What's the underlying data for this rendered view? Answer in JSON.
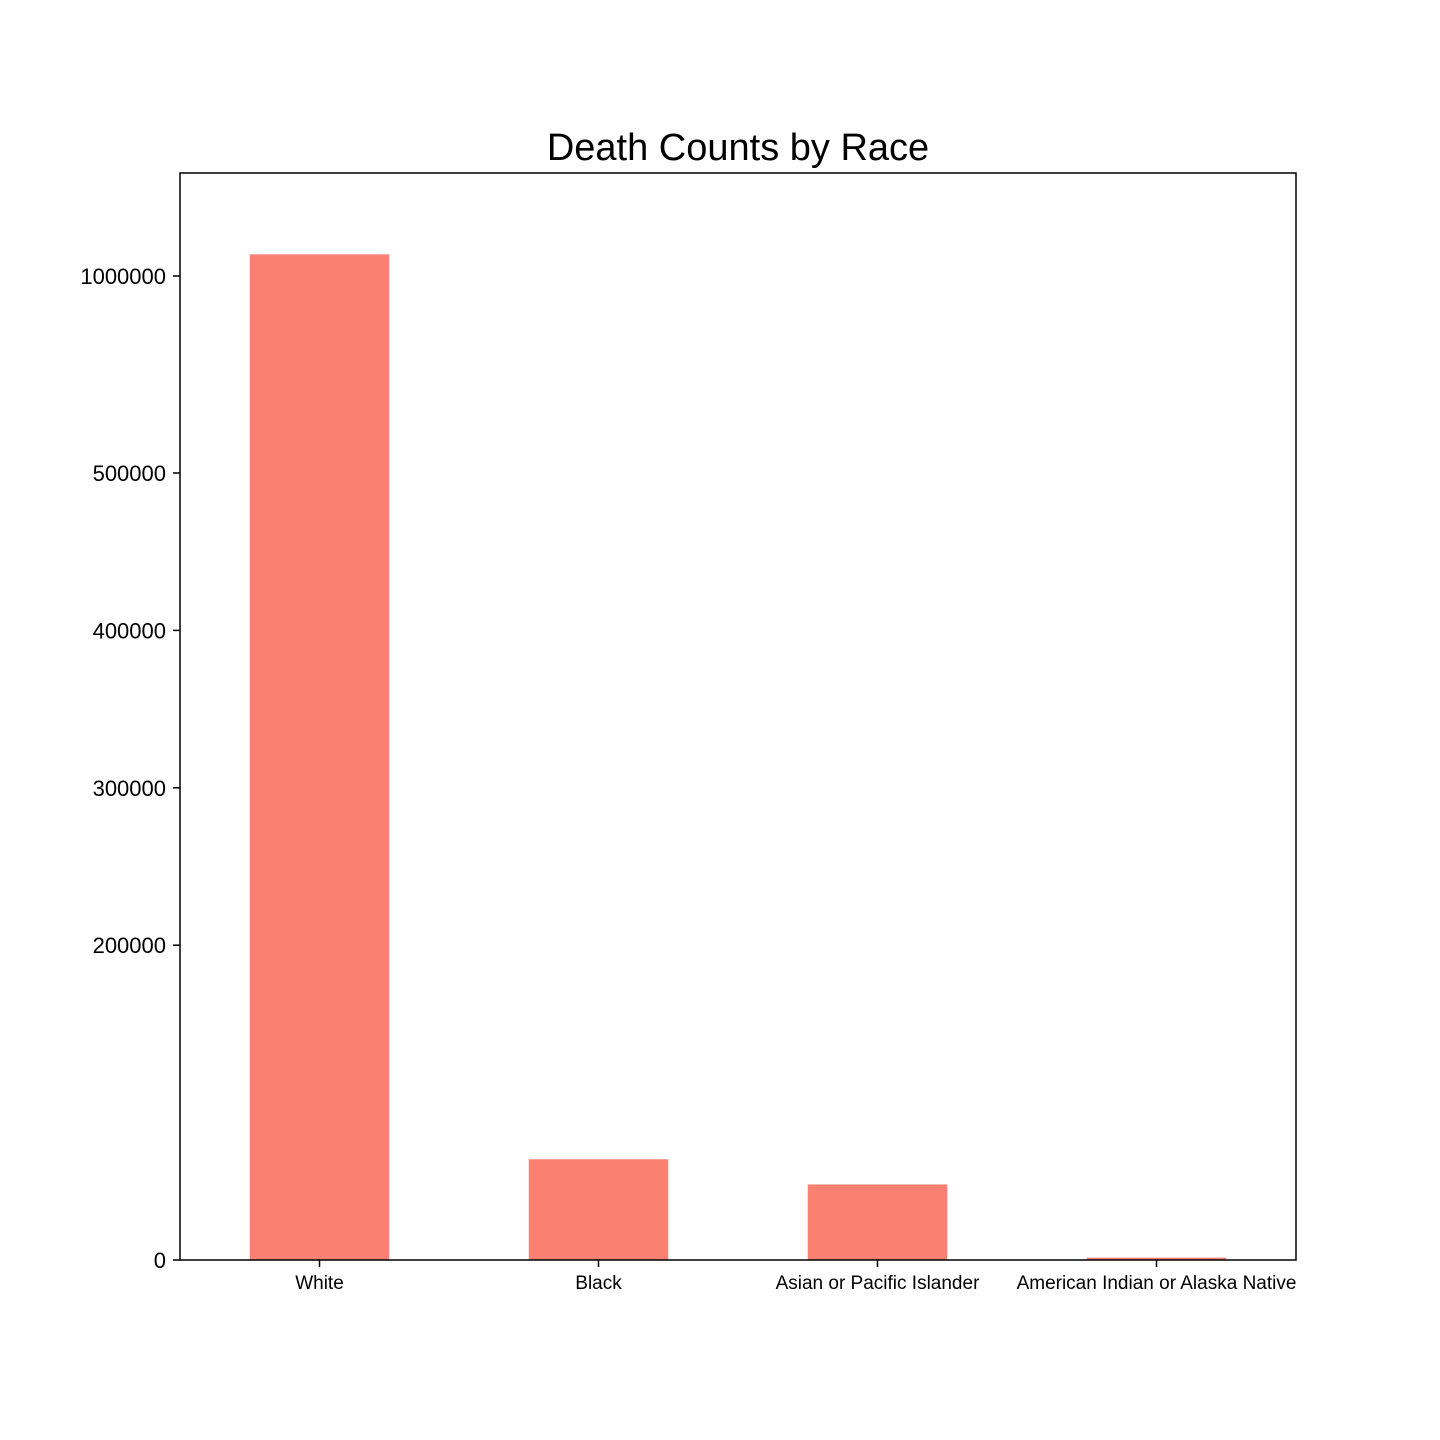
{
  "chart_data": {
    "type": "bar",
    "title": "Death Counts by Race",
    "xlabel": "",
    "ylabel": "",
    "categories": [
      "White",
      "Black",
      "Asian or Pacific Islander",
      "American Indian or Alaska Native"
    ],
    "values": [
      1055000,
      64000,
      48000,
      1500
    ],
    "bar_color": "#fa8072",
    "y_ticks": [
      {
        "value": 0,
        "label": "0"
      },
      {
        "value": 200000,
        "label": "200000"
      },
      {
        "value": 300000,
        "label": "300000"
      },
      {
        "value": 400000,
        "label": "400000"
      },
      {
        "value": 500000,
        "label": "500000"
      },
      {
        "value": 1000000,
        "label": "1000000"
      }
    ],
    "y_scale": "broken-piecewise",
    "ylim": [
      0,
      1080000
    ],
    "grid": false,
    "legend": "none"
  }
}
